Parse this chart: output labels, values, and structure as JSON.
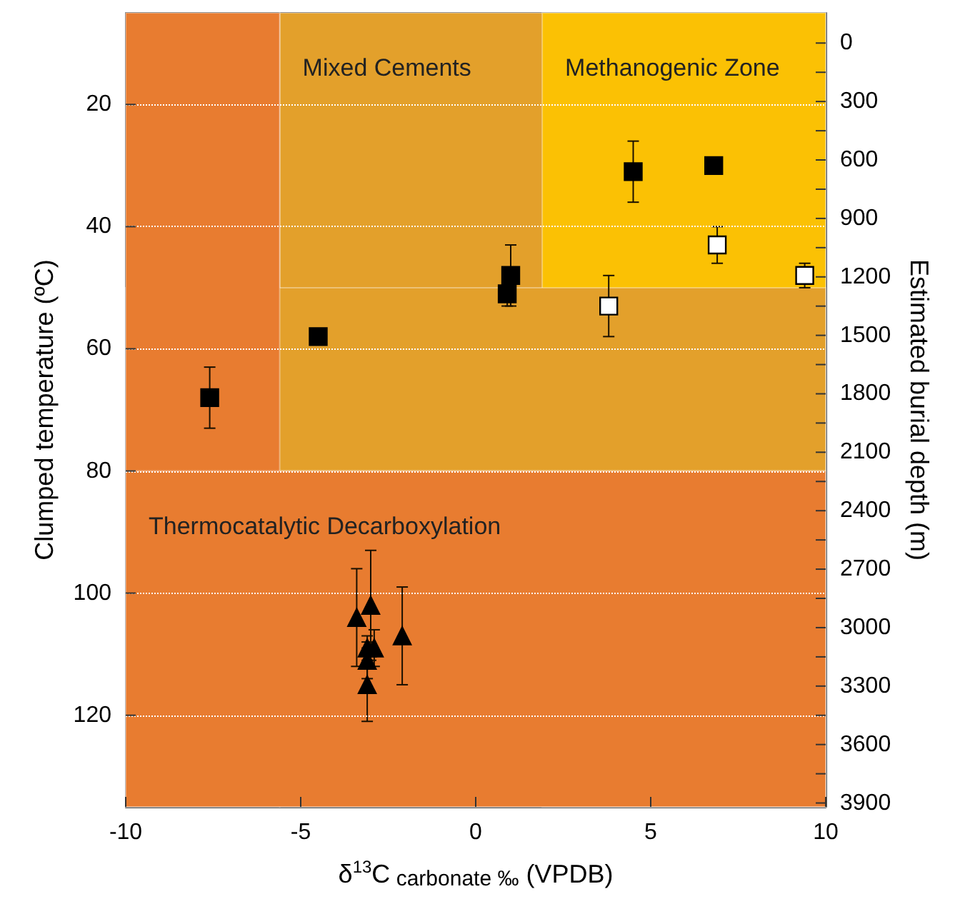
{
  "chart_data": {
    "type": "scatter",
    "xlabel": "δ$^{13}$C$_{ carbonate ‰}$ (VPDB)",
    "ylabel": "Clumped temperature (ºC)",
    "y2label": "Estimated burial depth (m)",
    "xlim": [
      -10,
      10
    ],
    "xticks": [
      -10,
      -5,
      0,
      5,
      10
    ],
    "ylim": [
      135,
      5
    ],
    "yticks": [
      20,
      40,
      60,
      80,
      100,
      120
    ],
    "y2lim": [
      3920,
      -155
    ],
    "y2ticks": [
      0,
      {
        "value": 150,
        "label": null
      },
      300,
      {
        "value": 450,
        "label": null
      },
      600,
      {
        "value": 750,
        "label": null
      },
      900,
      {
        "value": 1050,
        "label": null
      },
      1200,
      {
        "value": 1350,
        "label": null
      },
      1500,
      {
        "value": 1650,
        "label": null
      },
      1800,
      {
        "value": 1950,
        "label": null
      },
      2100,
      {
        "value": 2250,
        "label": null
      },
      2400,
      {
        "value": 2550,
        "label": null
      },
      2700,
      {
        "value": 2850,
        "label": null
      },
      3000,
      {
        "value": 3150,
        "label": null
      },
      3300,
      {
        "value": 3450,
        "label": null
      },
      3600,
      {
        "value": 3750,
        "label": null
      },
      3900
    ],
    "grid": "y",
    "bands": [
      {
        "axis": "x",
        "from": -5.6,
        "to": 10,
        "label": "Mixed Cements",
        "color": "#e3a02b"
      },
      {
        "axis": "x",
        "from": 1.9,
        "to": 10,
        "label": "Methanogenic Zone",
        "color": "#fbc104"
      },
      {
        "axis": "y",
        "from": 50,
        "to": 80,
        "color": "#e3a02b"
      },
      {
        "axis": "x",
        "from": -10,
        "to": -5.6,
        "color": "#e87c30"
      },
      {
        "axis": "y",
        "from": 80,
        "to": 135,
        "label": "Thermocatalytic Decarboxylation",
        "color": "#e87c30"
      }
    ],
    "series": [
      {
        "marker": "square",
        "color": "#000000",
        "x": [
          -7.6,
          -4.5,
          0.9,
          1.0,
          4.5,
          6.8
        ],
        "values": [
          68,
          58,
          51,
          48,
          31,
          30
        ],
        "errors": [
          5,
          null,
          2,
          5,
          5,
          null
        ]
      },
      {
        "marker": "square",
        "color": "#ffffff",
        "x": [
          3.8,
          6.9,
          9.4
        ],
        "values": [
          53,
          43,
          48
        ],
        "errors": [
          5,
          3,
          2
        ]
      },
      {
        "marker": "triangle",
        "color": "#000000",
        "x": [
          -3.4,
          -3.0,
          -2.1,
          -3.1,
          -2.9,
          -3.1,
          -3.1
        ],
        "values": [
          104,
          102,
          107,
          109,
          109,
          111,
          115
        ],
        "errors": [
          8,
          9,
          8,
          2,
          3,
          3,
          6
        ]
      }
    ]
  }
}
